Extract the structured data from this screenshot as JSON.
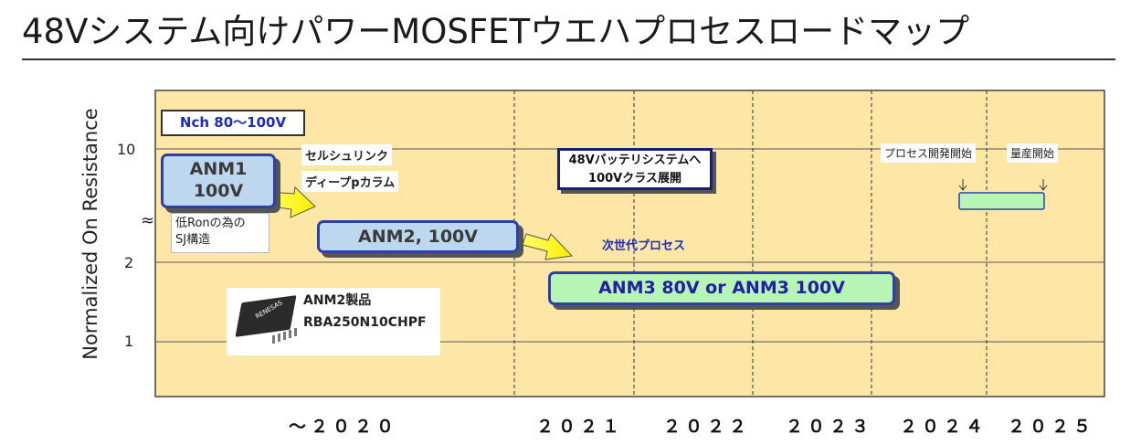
{
  "title": "48Vシステム向けパワーMOSFETウエハプロセスロードマップ",
  "axes": {
    "ylabel": "Normalized On Resistance",
    "yticks": [
      "10",
      "2",
      "1"
    ],
    "break_mark": "≈",
    "xticks": [
      "～２０２０",
      "２０２１",
      "２０２２",
      "２０２３",
      "２０２４",
      "２０２５"
    ]
  },
  "colors": {
    "background": "#fde6a6",
    "blue_box": "#bdd7ee",
    "green_box": "#b6f5b6",
    "arrow_yellow": "#ffff00",
    "border_blue": "#2d3fa8"
  },
  "nch_label": "Nch 80～100V",
  "products": {
    "anm1_line1": "ANM1",
    "anm1_line2": "100V",
    "anm2": "ANM2, 100V",
    "anm3": "ANM3 80V or ANM3 100V"
  },
  "notes": {
    "cell_link": "セルシュリンク",
    "deep_p": "ディープpカラム",
    "low_ron_line1": "低Ronの為の",
    "low_ron_line2": "SJ構造",
    "next_gen": "次世代プロセス",
    "callout_48v_line1": "48Vバッテリシステムへ",
    "callout_48v_line2": "100Vクラス展開",
    "process_dev": "プロセス開発開始",
    "mass_prod": "量産開始",
    "anm2_product_label": "ANM2製品",
    "anm2_product_part": "RBA250N10CHPF",
    "chip_logo": "RENESAS"
  }
}
